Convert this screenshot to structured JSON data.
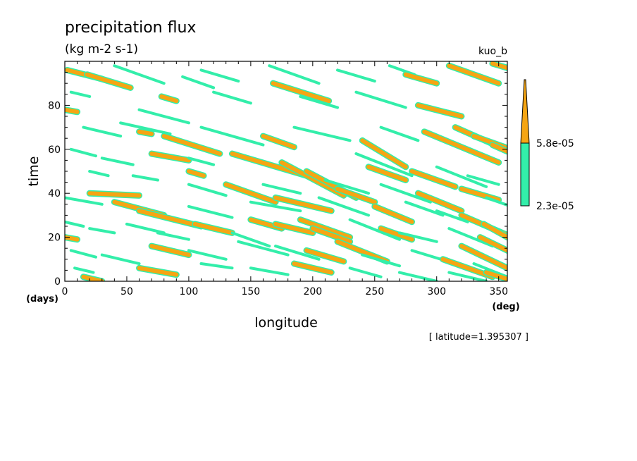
{
  "chart_data": {
    "type": "heatmap",
    "title": "precipitation flux",
    "units": "(kg m-2 s-1)",
    "experiment": "kuo_b",
    "xlabel": "longitude",
    "ylabel": "time",
    "x_unit": "(deg)",
    "y_unit": "(days)",
    "xlim": [
      0,
      357
    ],
    "ylim": [
      0,
      100
    ],
    "x_ticks": [
      0,
      50,
      100,
      150,
      200,
      250,
      300,
      350
    ],
    "y_ticks": [
      0,
      20,
      40,
      60,
      80
    ],
    "annotation": "[ latitude=1.395307 ]",
    "grid": false,
    "legend_position": "right",
    "levels": [
      {
        "name": "2.3e-05",
        "min": 2.3e-05,
        "max": 5.8e-05,
        "color": "#33eeaa"
      },
      {
        "name": "5.8e-05",
        "min": 5.8e-05,
        "max": null,
        "color": "#f5a514"
      }
    ],
    "colors": {
      "low": "#33eeaa",
      "high": "#f5a514",
      "background": "#ffffff"
    },
    "streaks": [
      {
        "x": 2,
        "t": 96,
        "len": 28,
        "dt": -4,
        "level": "high"
      },
      {
        "x": 18,
        "t": 94,
        "len": 35,
        "dt": -6,
        "level": "high"
      },
      {
        "x": 0,
        "t": 78,
        "len": 10,
        "dt": -1,
        "level": "high"
      },
      {
        "x": 40,
        "t": 98,
        "len": 40,
        "dt": -8,
        "level": "low"
      },
      {
        "x": 78,
        "t": 84,
        "len": 12,
        "dt": -2,
        "level": "high"
      },
      {
        "x": 95,
        "t": 93,
        "len": 25,
        "dt": -5,
        "level": "low"
      },
      {
        "x": 110,
        "t": 96,
        "len": 30,
        "dt": -5,
        "level": "low"
      },
      {
        "x": 165,
        "t": 98,
        "len": 40,
        "dt": -8,
        "level": "low"
      },
      {
        "x": 168,
        "t": 90,
        "len": 45,
        "dt": -8,
        "level": "high"
      },
      {
        "x": 220,
        "t": 96,
        "len": 30,
        "dt": -5,
        "level": "low"
      },
      {
        "x": 262,
        "t": 98,
        "len": 20,
        "dt": -4,
        "level": "low"
      },
      {
        "x": 275,
        "t": 94,
        "len": 25,
        "dt": -4,
        "level": "high"
      },
      {
        "x": 310,
        "t": 98,
        "len": 40,
        "dt": -8,
        "level": "high"
      },
      {
        "x": 345,
        "t": 99,
        "len": 12,
        "dt": -2,
        "level": "high"
      },
      {
        "x": 5,
        "t": 86,
        "len": 15,
        "dt": -2,
        "level": "low"
      },
      {
        "x": 60,
        "t": 78,
        "len": 40,
        "dt": -6,
        "level": "low"
      },
      {
        "x": 120,
        "t": 86,
        "len": 30,
        "dt": -5,
        "level": "low"
      },
      {
        "x": 190,
        "t": 84,
        "len": 30,
        "dt": -5,
        "level": "low"
      },
      {
        "x": 235,
        "t": 86,
        "len": 40,
        "dt": -7,
        "level": "low"
      },
      {
        "x": 285,
        "t": 80,
        "len": 35,
        "dt": -5,
        "level": "high"
      },
      {
        "x": 15,
        "t": 70,
        "len": 30,
        "dt": -4,
        "level": "low"
      },
      {
        "x": 45,
        "t": 72,
        "len": 40,
        "dt": -5,
        "level": "low"
      },
      {
        "x": 60,
        "t": 68,
        "len": 10,
        "dt": -1,
        "level": "high"
      },
      {
        "x": 80,
        "t": 66,
        "len": 45,
        "dt": -8,
        "level": "high"
      },
      {
        "x": 110,
        "t": 70,
        "len": 50,
        "dt": -8,
        "level": "low"
      },
      {
        "x": 160,
        "t": 66,
        "len": 25,
        "dt": -5,
        "level": "high"
      },
      {
        "x": 185,
        "t": 70,
        "len": 45,
        "dt": -6,
        "level": "low"
      },
      {
        "x": 240,
        "t": 64,
        "len": 35,
        "dt": -12,
        "level": "high"
      },
      {
        "x": 255,
        "t": 70,
        "len": 30,
        "dt": -6,
        "level": "low"
      },
      {
        "x": 290,
        "t": 68,
        "len": 60,
        "dt": -14,
        "level": "high"
      },
      {
        "x": 315,
        "t": 70,
        "len": 40,
        "dt": -10,
        "level": "high"
      },
      {
        "x": 330,
        "t": 66,
        "len": 25,
        "dt": -5,
        "level": "high"
      },
      {
        "x": 345,
        "t": 62,
        "len": 12,
        "dt": -3,
        "level": "high"
      },
      {
        "x": 5,
        "t": 60,
        "len": 20,
        "dt": -3,
        "level": "low"
      },
      {
        "x": 30,
        "t": 56,
        "len": 25,
        "dt": -3,
        "level": "low"
      },
      {
        "x": 70,
        "t": 58,
        "len": 30,
        "dt": -3,
        "level": "high"
      },
      {
        "x": 100,
        "t": 56,
        "len": 20,
        "dt": -3,
        "level": "low"
      },
      {
        "x": 135,
        "t": 58,
        "len": 60,
        "dt": -10,
        "level": "high"
      },
      {
        "x": 175,
        "t": 54,
        "len": 50,
        "dt": -15,
        "level": "high"
      },
      {
        "x": 195,
        "t": 50,
        "len": 40,
        "dt": -12,
        "level": "high"
      },
      {
        "x": 235,
        "t": 58,
        "len": 45,
        "dt": -10,
        "level": "low"
      },
      {
        "x": 245,
        "t": 52,
        "len": 30,
        "dt": -6,
        "level": "high"
      },
      {
        "x": 280,
        "t": 50,
        "len": 35,
        "dt": -7,
        "level": "high"
      },
      {
        "x": 300,
        "t": 52,
        "len": 40,
        "dt": -9,
        "level": "low"
      },
      {
        "x": 325,
        "t": 48,
        "len": 25,
        "dt": -4,
        "level": "low"
      },
      {
        "x": 20,
        "t": 50,
        "len": 15,
        "dt": -2,
        "level": "low"
      },
      {
        "x": 55,
        "t": 48,
        "len": 20,
        "dt": -2,
        "level": "low"
      },
      {
        "x": 100,
        "t": 50,
        "len": 12,
        "dt": -2,
        "level": "high"
      },
      {
        "x": 100,
        "t": 44,
        "len": 30,
        "dt": -5,
        "level": "low"
      },
      {
        "x": 130,
        "t": 44,
        "len": 40,
        "dt": -8,
        "level": "high"
      },
      {
        "x": 160,
        "t": 44,
        "len": 30,
        "dt": -4,
        "level": "low"
      },
      {
        "x": 210,
        "t": 46,
        "len": 35,
        "dt": -6,
        "level": "low"
      },
      {
        "x": 220,
        "t": 42,
        "len": 30,
        "dt": -6,
        "level": "high"
      },
      {
        "x": 255,
        "t": 44,
        "len": 40,
        "dt": -8,
        "level": "low"
      },
      {
        "x": 285,
        "t": 40,
        "len": 35,
        "dt": -8,
        "level": "high"
      },
      {
        "x": 320,
        "t": 42,
        "len": 30,
        "dt": -5,
        "level": "high"
      },
      {
        "x": 340,
        "t": 38,
        "len": 20,
        "dt": -4,
        "level": "low"
      },
      {
        "x": 0,
        "t": 38,
        "len": 30,
        "dt": -3,
        "level": "low"
      },
      {
        "x": 20,
        "t": 40,
        "len": 40,
        "dt": -1,
        "level": "high"
      },
      {
        "x": 40,
        "t": 36,
        "len": 40,
        "dt": -6,
        "level": "high"
      },
      {
        "x": 60,
        "t": 32,
        "len": 50,
        "dt": -7,
        "level": "high"
      },
      {
        "x": 100,
        "t": 34,
        "len": 35,
        "dt": -5,
        "level": "low"
      },
      {
        "x": 150,
        "t": 36,
        "len": 40,
        "dt": -4,
        "level": "low"
      },
      {
        "x": 170,
        "t": 38,
        "len": 45,
        "dt": -6,
        "level": "high"
      },
      {
        "x": 205,
        "t": 38,
        "len": 40,
        "dt": -8,
        "level": "low"
      },
      {
        "x": 250,
        "t": 34,
        "len": 30,
        "dt": -7,
        "level": "high"
      },
      {
        "x": 275,
        "t": 36,
        "len": 30,
        "dt": -6,
        "level": "low"
      },
      {
        "x": 300,
        "t": 32,
        "len": 25,
        "dt": -5,
        "level": "low"
      },
      {
        "x": 320,
        "t": 30,
        "len": 37,
        "dt": -9,
        "level": "high"
      },
      {
        "x": 338,
        "t": 26,
        "len": 19,
        "dt": -6,
        "level": "high"
      },
      {
        "x": 0,
        "t": 20,
        "len": 10,
        "dt": -1,
        "level": "high"
      },
      {
        "x": 0,
        "t": 27,
        "len": 15,
        "dt": -2,
        "level": "low"
      },
      {
        "x": 20,
        "t": 24,
        "len": 20,
        "dt": -2,
        "level": "low"
      },
      {
        "x": 50,
        "t": 26,
        "len": 30,
        "dt": -4,
        "level": "low"
      },
      {
        "x": 75,
        "t": 22,
        "len": 25,
        "dt": -3,
        "level": "low"
      },
      {
        "x": 105,
        "t": 26,
        "len": 30,
        "dt": -4,
        "level": "high"
      },
      {
        "x": 135,
        "t": 22,
        "len": 30,
        "dt": -6,
        "level": "low"
      },
      {
        "x": 150,
        "t": 28,
        "len": 25,
        "dt": -4,
        "level": "high"
      },
      {
        "x": 170,
        "t": 26,
        "len": 30,
        "dt": -4,
        "level": "high"
      },
      {
        "x": 190,
        "t": 28,
        "len": 40,
        "dt": -8,
        "level": "high"
      },
      {
        "x": 200,
        "t": 24,
        "len": 30,
        "dt": -6,
        "level": "high"
      },
      {
        "x": 230,
        "t": 28,
        "len": 40,
        "dt": -9,
        "level": "low"
      },
      {
        "x": 255,
        "t": 24,
        "len": 25,
        "dt": -5,
        "level": "high"
      },
      {
        "x": 270,
        "t": 22,
        "len": 30,
        "dt": -4,
        "level": "low"
      },
      {
        "x": 310,
        "t": 24,
        "len": 35,
        "dt": -8,
        "level": "low"
      },
      {
        "x": 335,
        "t": 20,
        "len": 22,
        "dt": -6,
        "level": "high"
      },
      {
        "x": 5,
        "t": 14,
        "len": 20,
        "dt": -3,
        "level": "low"
      },
      {
        "x": 30,
        "t": 12,
        "len": 30,
        "dt": -4,
        "level": "low"
      },
      {
        "x": 70,
        "t": 16,
        "len": 30,
        "dt": -4,
        "level": "high"
      },
      {
        "x": 100,
        "t": 14,
        "len": 30,
        "dt": -4,
        "level": "low"
      },
      {
        "x": 140,
        "t": 18,
        "len": 40,
        "dt": -6,
        "level": "low"
      },
      {
        "x": 170,
        "t": 16,
        "len": 35,
        "dt": -6,
        "level": "low"
      },
      {
        "x": 195,
        "t": 14,
        "len": 30,
        "dt": -5,
        "level": "high"
      },
      {
        "x": 220,
        "t": 18,
        "len": 40,
        "dt": -9,
        "level": "high"
      },
      {
        "x": 240,
        "t": 12,
        "len": 30,
        "dt": -5,
        "level": "low"
      },
      {
        "x": 280,
        "t": 14,
        "len": 35,
        "dt": -6,
        "level": "low"
      },
      {
        "x": 305,
        "t": 10,
        "len": 40,
        "dt": -8,
        "level": "high"
      },
      {
        "x": 320,
        "t": 16,
        "len": 37,
        "dt": -10,
        "level": "high"
      },
      {
        "x": 330,
        "t": 8,
        "len": 27,
        "dt": -6,
        "level": "low"
      },
      {
        "x": 8,
        "t": 6,
        "len": 15,
        "dt": -2,
        "level": "low"
      },
      {
        "x": 15,
        "t": 2,
        "len": 15,
        "dt": -2,
        "level": "high"
      },
      {
        "x": 60,
        "t": 6,
        "len": 30,
        "dt": -3,
        "level": "high"
      },
      {
        "x": 110,
        "t": 8,
        "len": 25,
        "dt": -2,
        "level": "low"
      },
      {
        "x": 150,
        "t": 6,
        "len": 30,
        "dt": -3,
        "level": "low"
      },
      {
        "x": 185,
        "t": 8,
        "len": 30,
        "dt": -4,
        "level": "high"
      },
      {
        "x": 230,
        "t": 6,
        "len": 25,
        "dt": -4,
        "level": "low"
      },
      {
        "x": 270,
        "t": 4,
        "len": 30,
        "dt": -4,
        "level": "low"
      },
      {
        "x": 310,
        "t": 4,
        "len": 30,
        "dt": -4,
        "level": "low"
      },
      {
        "x": 340,
        "t": 4,
        "len": 17,
        "dt": -3,
        "level": "high"
      }
    ]
  }
}
